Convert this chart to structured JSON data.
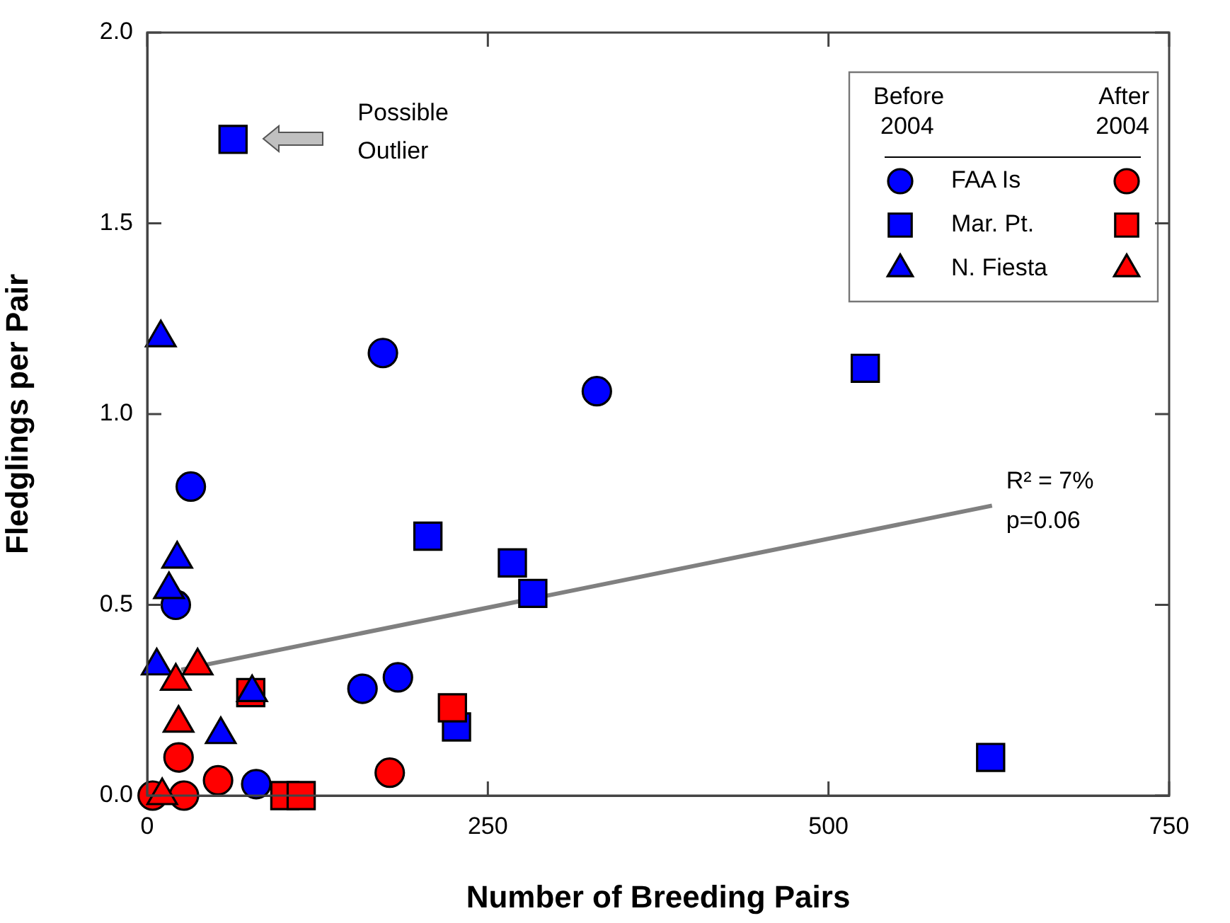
{
  "chart_data": {
    "type": "scatter",
    "xlabel": "Number of Breeding Pairs",
    "ylabel": "Fledglings per Pair",
    "xlim": [
      0,
      750
    ],
    "xticks": [
      0,
      250,
      500,
      750
    ],
    "ylim": [
      0,
      2
    ],
    "yticks": [
      {
        "value": 0,
        "label": "0.0"
      },
      {
        "value": 0.5,
        "label": "0.5"
      },
      {
        "value": 1,
        "label": "1.0"
      },
      {
        "value": 1.5,
        "label": "1.5"
      },
      {
        "value": 2,
        "label": "2.0"
      }
    ],
    "grid": false,
    "legend": "top right",
    "series": [
      {
        "name": "FAA Is",
        "color": "#0000ff",
        "marker": "circle",
        "x": [
          173,
          330,
          32,
          21,
          158,
          184,
          80
        ],
        "values": [
          1.16,
          1.06,
          0.81,
          0.5,
          0.28,
          0.31,
          0.03
        ]
      },
      {
        "name": "Mar. Pt.",
        "color": "#0000ff",
        "marker": "square",
        "x": [
          63,
          527,
          619,
          206,
          268,
          283,
          227
        ],
        "values": [
          1.72,
          1.12,
          0.1,
          0.68,
          0.61,
          0.53,
          0.18
        ]
      },
      {
        "name": "N. Fiesta",
        "color": "#0000ff",
        "marker": "triangle",
        "x": [
          10,
          22,
          16,
          7,
          54
        ],
        "values": [
          1.2,
          0.62,
          0.54,
          0.34,
          0.16
        ]
      },
      {
        "color": "#ff0000",
        "marker": "circle",
        "x": [
          23,
          52,
          4,
          27,
          178
        ],
        "values": [
          0.1,
          0.04,
          0,
          0,
          0.06
        ]
      },
      {
        "color": "#ff0000",
        "marker": "square",
        "x": [
          76,
          101,
          113,
          224
        ],
        "values": [
          0.27,
          0,
          0,
          0.23
        ]
      },
      {
        "color": "#ff0000",
        "marker": "triangle",
        "x": [
          37,
          21,
          23,
          11
        ],
        "values": [
          0.34,
          0.3,
          0.19,
          0
        ]
      },
      {
        "type": "line",
        "color": "#808080",
        "marker": "none",
        "x": [
          25,
          620
        ],
        "values": [
          0.33,
          0.76
        ]
      },
      {
        "color": "#0000ff",
        "marker": "triangle",
        "x": [
          77
        ],
        "values": [
          0.27
        ]
      }
    ],
    "annotations": [
      "Possible Outlier",
      "R² = 7%",
      "p=0.06",
      "Before 2004",
      "After 2004"
    ]
  }
}
